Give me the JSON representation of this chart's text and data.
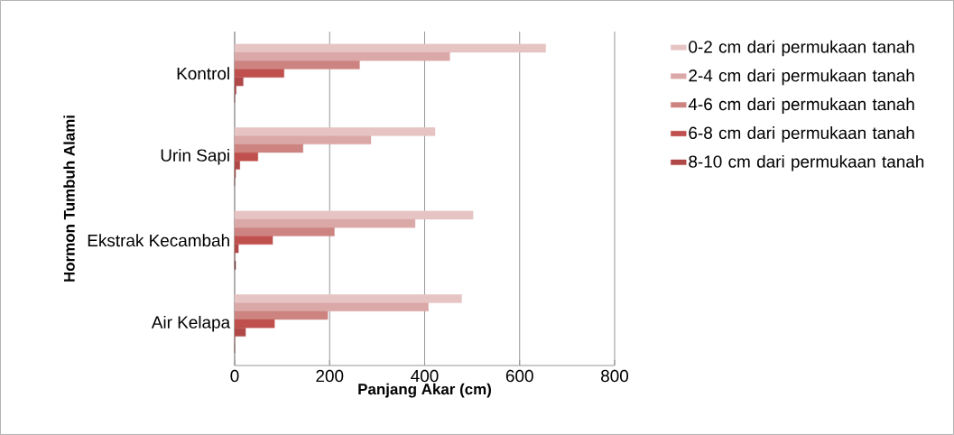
{
  "chart_data": {
    "type": "bar",
    "orientation": "horizontal",
    "xlabel": "Panjang Akar (cm)",
    "ylabel": "Hormon Tumbuh Alami",
    "categories": [
      "Kontrol",
      "Urin Sapi",
      "Ekstrak Kecambah",
      "Air Kelapa"
    ],
    "series": [
      {
        "name": "0-2 cm dari permukaan tanah",
        "color": "#e6c4c4",
        "values": [
          655,
          422,
          502,
          478
        ]
      },
      {
        "name": "2-4 cm dari permukaan tanah",
        "color": "#dba8a8",
        "values": [
          453,
          287,
          380,
          408
        ]
      },
      {
        "name": "4-6 cm dari permukaan tanah",
        "color": "#cd8380",
        "values": [
          263,
          144,
          210,
          196
        ]
      },
      {
        "name": "6-8 cm dari permukaan tanah",
        "color": "#c0504d",
        "values": [
          104,
          49,
          80,
          84
        ]
      },
      {
        "name": "8-10 cm dari permukaan tanah",
        "color": "#b04848",
        "values": [
          18,
          11,
          8,
          23
        ]
      },
      {
        "color": "#9c4242",
        "values": [
          3,
          2,
          0,
          0
        ]
      },
      {
        "color": "#6e2a2a",
        "values": [
          0,
          0,
          2,
          0
        ]
      }
    ],
    "xlim": [
      0,
      800
    ],
    "xticks": [
      0,
      200,
      400,
      600,
      800
    ],
    "grid": "x",
    "legend": "right"
  }
}
